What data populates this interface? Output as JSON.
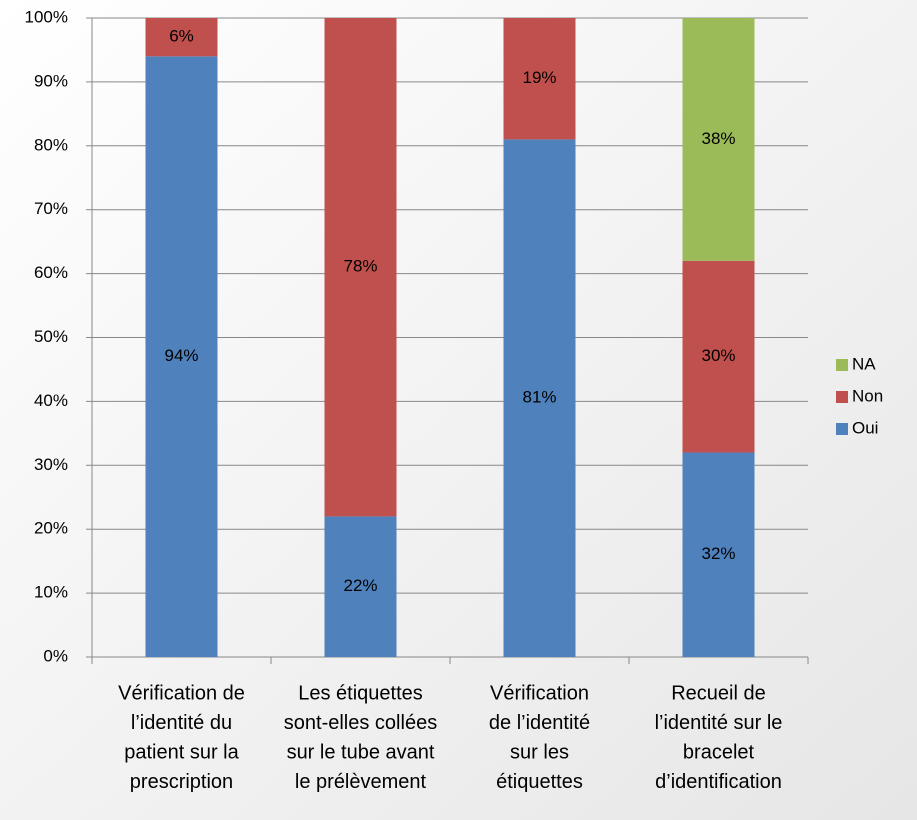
{
  "chart_data": {
    "type": "stacked_bar",
    "categories": [
      [
        "Vérification de",
        "l’identité du",
        "patient sur la",
        "prescription"
      ],
      [
        "Les étiquettes",
        "sont-elles collées",
        "sur le tube avant",
        "le prélèvement"
      ],
      [
        "Vérification",
        "de l’identité",
        "sur les",
        "étiquettes"
      ],
      [
        "Recueil de",
        "l’identité sur le",
        "bracelet",
        "d’identification"
      ]
    ],
    "series": [
      {
        "name": "Oui",
        "color": "#4f81bd",
        "values": [
          94,
          22,
          81,
          32
        ],
        "value_labels": [
          "94%",
          "22%",
          "81%",
          "32%"
        ]
      },
      {
        "name": "Non",
        "color": "#c0504d",
        "values": [
          6,
          78,
          19,
          30
        ],
        "value_labels": [
          "6%",
          "78%",
          "19%",
          "30%"
        ]
      },
      {
        "name": "NA",
        "color": "#9bbb59",
        "values": [
          null,
          null,
          null,
          38
        ],
        "value_labels": [
          null,
          null,
          null,
          "38%"
        ]
      }
    ],
    "ylim": [
      0,
      100
    ],
    "yticks": [
      {
        "value": 0,
        "label": "0%"
      },
      {
        "value": 10,
        "label": "10%"
      },
      {
        "value": 20,
        "label": "20%"
      },
      {
        "value": 30,
        "label": "30%"
      },
      {
        "value": 40,
        "label": "40%"
      },
      {
        "value": 50,
        "label": "50%"
      },
      {
        "value": 60,
        "label": "60%"
      },
      {
        "value": 70,
        "label": "70%"
      },
      {
        "value": 80,
        "label": "80%"
      },
      {
        "value": 90,
        "label": "90%"
      },
      {
        "value": 100,
        "label": "100%"
      }
    ],
    "grid": true,
    "legend": "right"
  }
}
